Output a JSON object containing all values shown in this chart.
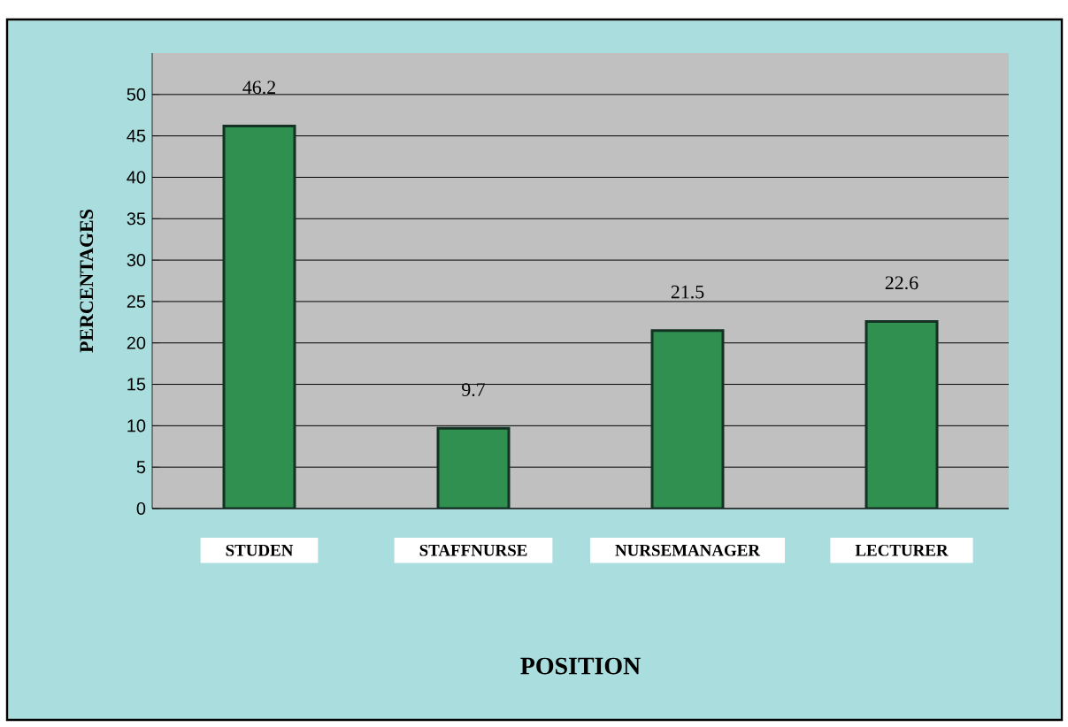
{
  "chart_data": {
    "type": "bar",
    "categories": [
      "STUDEN",
      "STAFFNURSE",
      "NURSEMANAGER",
      "LECTURER"
    ],
    "values": [
      46.2,
      9.7,
      21.5,
      22.6
    ],
    "color": "#2f9050",
    "ylim": [
      0,
      55
    ],
    "yticks": [
      0,
      5,
      10,
      15,
      20,
      25,
      30,
      35,
      40,
      45,
      50
    ],
    "grid": "y",
    "data_labels": true,
    "xlabel": "POSITION",
    "ylabel": "PERCENTAGES"
  }
}
